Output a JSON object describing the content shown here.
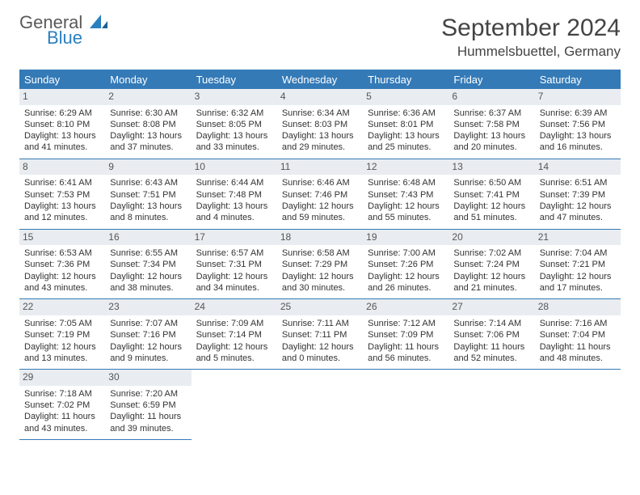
{
  "logo": {
    "word1": "General",
    "word2": "Blue"
  },
  "title": "September 2024",
  "location": "Hummelsbuettel, Germany",
  "colors": {
    "header_bg": "#347ab7",
    "header_text": "#ffffff",
    "daynum_bg": "#e9edf1",
    "border": "#347ab7",
    "logo_gray": "#5a5a5a",
    "logo_blue": "#2a7fbf"
  },
  "daysOfWeek": [
    "Sunday",
    "Monday",
    "Tuesday",
    "Wednesday",
    "Thursday",
    "Friday",
    "Saturday"
  ],
  "days": [
    {
      "n": 1,
      "sunrise": "6:29 AM",
      "sunset": "8:10 PM",
      "dl": "13 hours and 41 minutes."
    },
    {
      "n": 2,
      "sunrise": "6:30 AM",
      "sunset": "8:08 PM",
      "dl": "13 hours and 37 minutes."
    },
    {
      "n": 3,
      "sunrise": "6:32 AM",
      "sunset": "8:05 PM",
      "dl": "13 hours and 33 minutes."
    },
    {
      "n": 4,
      "sunrise": "6:34 AM",
      "sunset": "8:03 PM",
      "dl": "13 hours and 29 minutes."
    },
    {
      "n": 5,
      "sunrise": "6:36 AM",
      "sunset": "8:01 PM",
      "dl": "13 hours and 25 minutes."
    },
    {
      "n": 6,
      "sunrise": "6:37 AM",
      "sunset": "7:58 PM",
      "dl": "13 hours and 20 minutes."
    },
    {
      "n": 7,
      "sunrise": "6:39 AM",
      "sunset": "7:56 PM",
      "dl": "13 hours and 16 minutes."
    },
    {
      "n": 8,
      "sunrise": "6:41 AM",
      "sunset": "7:53 PM",
      "dl": "13 hours and 12 minutes."
    },
    {
      "n": 9,
      "sunrise": "6:43 AM",
      "sunset": "7:51 PM",
      "dl": "13 hours and 8 minutes."
    },
    {
      "n": 10,
      "sunrise": "6:44 AM",
      "sunset": "7:48 PM",
      "dl": "13 hours and 4 minutes."
    },
    {
      "n": 11,
      "sunrise": "6:46 AM",
      "sunset": "7:46 PM",
      "dl": "12 hours and 59 minutes."
    },
    {
      "n": 12,
      "sunrise": "6:48 AM",
      "sunset": "7:43 PM",
      "dl": "12 hours and 55 minutes."
    },
    {
      "n": 13,
      "sunrise": "6:50 AM",
      "sunset": "7:41 PM",
      "dl": "12 hours and 51 minutes."
    },
    {
      "n": 14,
      "sunrise": "6:51 AM",
      "sunset": "7:39 PM",
      "dl": "12 hours and 47 minutes."
    },
    {
      "n": 15,
      "sunrise": "6:53 AM",
      "sunset": "7:36 PM",
      "dl": "12 hours and 43 minutes."
    },
    {
      "n": 16,
      "sunrise": "6:55 AM",
      "sunset": "7:34 PM",
      "dl": "12 hours and 38 minutes."
    },
    {
      "n": 17,
      "sunrise": "6:57 AM",
      "sunset": "7:31 PM",
      "dl": "12 hours and 34 minutes."
    },
    {
      "n": 18,
      "sunrise": "6:58 AM",
      "sunset": "7:29 PM",
      "dl": "12 hours and 30 minutes."
    },
    {
      "n": 19,
      "sunrise": "7:00 AM",
      "sunset": "7:26 PM",
      "dl": "12 hours and 26 minutes."
    },
    {
      "n": 20,
      "sunrise": "7:02 AM",
      "sunset": "7:24 PM",
      "dl": "12 hours and 21 minutes."
    },
    {
      "n": 21,
      "sunrise": "7:04 AM",
      "sunset": "7:21 PM",
      "dl": "12 hours and 17 minutes."
    },
    {
      "n": 22,
      "sunrise": "7:05 AM",
      "sunset": "7:19 PM",
      "dl": "12 hours and 13 minutes."
    },
    {
      "n": 23,
      "sunrise": "7:07 AM",
      "sunset": "7:16 PM",
      "dl": "12 hours and 9 minutes."
    },
    {
      "n": 24,
      "sunrise": "7:09 AM",
      "sunset": "7:14 PM",
      "dl": "12 hours and 5 minutes."
    },
    {
      "n": 25,
      "sunrise": "7:11 AM",
      "sunset": "7:11 PM",
      "dl": "12 hours and 0 minutes."
    },
    {
      "n": 26,
      "sunrise": "7:12 AM",
      "sunset": "7:09 PM",
      "dl": "11 hours and 56 minutes."
    },
    {
      "n": 27,
      "sunrise": "7:14 AM",
      "sunset": "7:06 PM",
      "dl": "11 hours and 52 minutes."
    },
    {
      "n": 28,
      "sunrise": "7:16 AM",
      "sunset": "7:04 PM",
      "dl": "11 hours and 48 minutes."
    },
    {
      "n": 29,
      "sunrise": "7:18 AM",
      "sunset": "7:02 PM",
      "dl": "11 hours and 43 minutes."
    },
    {
      "n": 30,
      "sunrise": "7:20 AM",
      "sunset": "6:59 PM",
      "dl": "11 hours and 39 minutes."
    }
  ],
  "labels": {
    "sunrise": "Sunrise: ",
    "sunset": "Sunset: ",
    "daylight": "Daylight: "
  }
}
